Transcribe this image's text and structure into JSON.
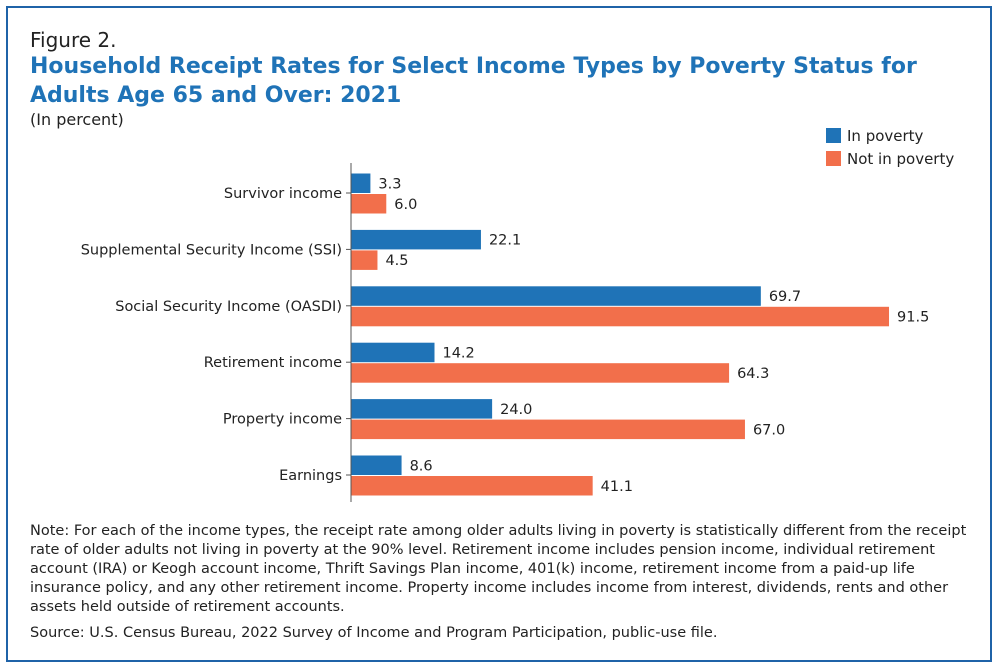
{
  "figure_label": "Figure 2.",
  "title": "Household Receipt Rates for Select Income Types by Poverty Status for Adults Age 65 and Over: 2021",
  "subtitle": "(In percent)",
  "note": "Note: For each of the income types, the receipt rate among older adults living in poverty is statistically different from the receipt rate of older adults not living in poverty at the 90% level. Retirement income includes pension income, individual retirement account (IRA) or Keogh account income, Thrift Savings Plan income, 401(k) income, retirement income from a paid-up life insurance policy, and any other retirement income. Property income includes income from interest, dividends, rents and other assets held outside of retirement accounts.",
  "source": "Source: U.S. Census Bureau, 2022 Survey of Income and Program Participation, public-use file.",
  "colors": {
    "accent": "#1f73b7",
    "in_poverty": "#1f73b7",
    "not_in_poverty": "#f26f4b",
    "frame": "#1f63a8"
  },
  "chart_data": {
    "type": "bar",
    "orientation": "horizontal",
    "categories": [
      "Survivor income",
      "Supplemental Security Income (SSI)",
      "Social Security Income (OASDI)",
      "Retirement income",
      "Property income",
      "Earnings"
    ],
    "series": [
      {
        "name": "In poverty",
        "color": "#1f73b7",
        "values": [
          3.3,
          22.1,
          69.7,
          14.2,
          24.0,
          8.6
        ],
        "labels": [
          "3.3",
          "22.1",
          "69.7",
          "14.2",
          "24.0",
          "8.6"
        ]
      },
      {
        "name": "Not in poverty",
        "color": "#f26f4b",
        "values": [
          6.0,
          4.5,
          91.5,
          64.3,
          67.0,
          41.1
        ],
        "labels": [
          "6.0",
          "4.5",
          "91.5",
          "64.3",
          "67.0",
          "41.1"
        ]
      }
    ],
    "xlim": [
      0,
      100
    ],
    "grid": false,
    "legend_position": "top-right"
  }
}
